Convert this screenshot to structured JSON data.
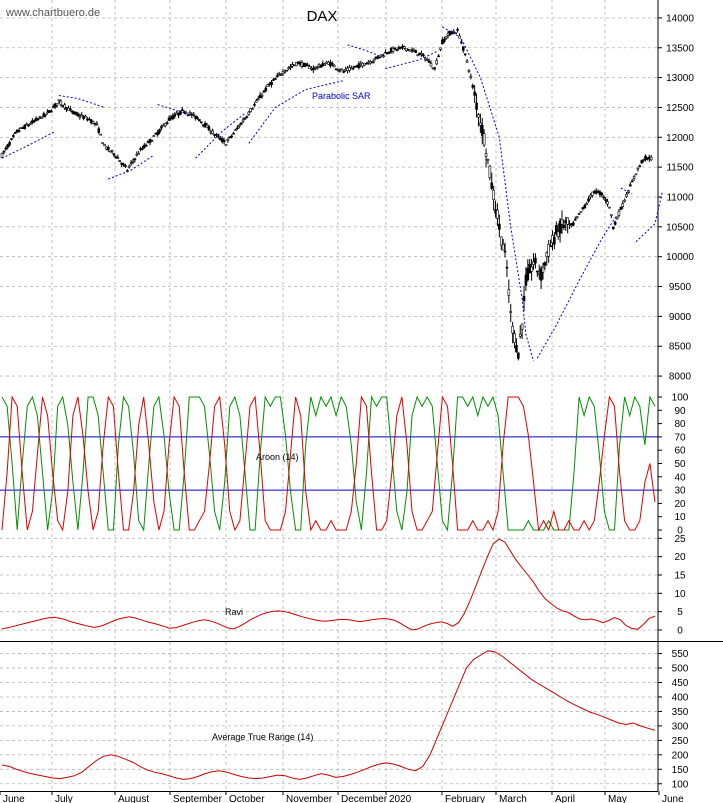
{
  "watermark": "www.chartbuero.de",
  "chart_data": [
    {
      "type": "candlestick",
      "title": "DAX",
      "x_labels": [
        "June",
        "July",
        "August",
        "September",
        "October",
        "November",
        "December",
        "2020",
        "February",
        "March",
        "April",
        "May",
        "June"
      ],
      "ylim": [
        7800,
        14300
      ],
      "y_ticks": [
        8000,
        8500,
        9000,
        9500,
        10000,
        10500,
        11000,
        11500,
        12000,
        12500,
        13000,
        13500,
        14000
      ],
      "grid": true,
      "indicator_label": "Parabolic SAR",
      "close_path": [
        [
          0,
          11700
        ],
        [
          4,
          12100
        ],
        [
          8,
          12250
        ],
        [
          12,
          12400
        ],
        [
          15,
          12600
        ],
        [
          19,
          12400
        ],
        [
          23,
          12300
        ],
        [
          25,
          12200
        ],
        [
          27,
          11850
        ],
        [
          30,
          11700
        ],
        [
          33,
          11450
        ],
        [
          36,
          11750
        ],
        [
          40,
          12000
        ],
        [
          44,
          12300
        ],
        [
          48,
          12450
        ],
        [
          52,
          12300
        ],
        [
          56,
          12050
        ],
        [
          59,
          11900
        ],
        [
          62,
          12150
        ],
        [
          66,
          12500
        ],
        [
          70,
          12850
        ],
        [
          74,
          13100
        ],
        [
          78,
          13250
        ],
        [
          82,
          13150
        ],
        [
          86,
          13250
        ],
        [
          90,
          13100
        ],
        [
          94,
          13200
        ],
        [
          98,
          13300
        ],
        [
          102,
          13450
        ],
        [
          106,
          13500
        ],
        [
          110,
          13400
        ],
        [
          112,
          13300
        ],
        [
          114,
          13150
        ],
        [
          116,
          13600
        ],
        [
          118,
          13750
        ],
        [
          120,
          13780
        ],
        [
          121,
          13600
        ],
        [
          123,
          13150
        ],
        [
          125,
          12550
        ],
        [
          127,
          12000
        ],
        [
          129,
          11200
        ],
        [
          131,
          10500
        ],
        [
          133,
          9800
        ],
        [
          134,
          9000
        ],
        [
          135,
          8650
        ],
        [
          136,
          8400
        ],
        [
          137,
          8900
        ],
        [
          138,
          9600
        ],
        [
          140,
          9900
        ],
        [
          142,
          9700
        ],
        [
          144,
          10100
        ],
        [
          146,
          10400
        ],
        [
          148,
          10550
        ],
        [
          150,
          10500
        ],
        [
          152,
          10700
        ],
        [
          154,
          10900
        ],
        [
          156,
          11100
        ],
        [
          158,
          11050
        ],
        [
          160,
          10850
        ],
        [
          161,
          10500
        ],
        [
          163,
          10800
        ],
        [
          165,
          11100
        ],
        [
          167,
          11400
        ],
        [
          169,
          11650
        ],
        [
          171,
          11650
        ]
      ],
      "sar_segments": [
        [
          [
            0,
            11650
          ],
          [
            8,
            11900
          ],
          [
            14,
            12100
          ]
        ],
        [
          [
            15,
            12700
          ],
          [
            20,
            12650
          ],
          [
            27,
            12500
          ]
        ],
        [
          [
            28,
            11300
          ],
          [
            34,
            11450
          ],
          [
            40,
            11700
          ]
        ],
        [
          [
            41,
            12550
          ],
          [
            46,
            12450
          ],
          [
            50,
            12350
          ]
        ],
        [
          [
            51,
            11650
          ],
          [
            58,
            12100
          ],
          [
            64,
            12400
          ]
        ],
        [
          [
            65,
            11900
          ],
          [
            72,
            12500
          ],
          [
            80,
            12800
          ],
          [
            90,
            12950
          ]
        ],
        [
          [
            91,
            13550
          ],
          [
            96,
            13450
          ],
          [
            100,
            13350
          ]
        ],
        [
          [
            101,
            13150
          ],
          [
            110,
            13300
          ],
          [
            115,
            13450
          ]
        ],
        [
          [
            116,
            13850
          ],
          [
            120,
            13700
          ]
        ],
        [
          [
            121,
            13650
          ],
          [
            126,
            13000
          ],
          [
            131,
            12000
          ],
          [
            134,
            10500
          ],
          [
            137,
            9300
          ],
          [
            138,
            8700
          ],
          [
            140,
            8250
          ]
        ],
        [
          [
            141,
            8300
          ],
          [
            146,
            8850
          ],
          [
            152,
            9600
          ],
          [
            158,
            10300
          ],
          [
            162,
            10700
          ]
        ],
        [
          [
            163,
            11150
          ],
          [
            166,
            11050
          ]
        ],
        [
          [
            167,
            10250
          ],
          [
            172,
            10550
          ],
          [
            174,
            11100
          ]
        ]
      ]
    },
    {
      "type": "line",
      "title": "Aroon (14)",
      "ylim": [
        0,
        100
      ],
      "y_ticks": [
        0,
        10,
        20,
        30,
        40,
        50,
        60,
        70,
        80,
        90,
        100
      ],
      "reference_lines": [
        30,
        70
      ],
      "series": [
        {
          "color": "#009000",
          "values": [
            100,
            93,
            50,
            0,
            50,
            93,
            100,
            86,
            43,
            0,
            29,
            93,
            100,
            79,
            36,
            0,
            43,
            100,
            100,
            86,
            43,
            0,
            0,
            64,
            100,
            93,
            57,
            7,
            0,
            50,
            93,
            100,
            71,
            29,
            0,
            0,
            43,
            100,
            100,
            100,
            93,
            57,
            14,
            0,
            36,
            93,
            100,
            86,
            43,
            0,
            0,
            57,
            100,
            93,
            100,
            100,
            71,
            29,
            0,
            0,
            64,
            100,
            86,
            100,
            93,
            100,
            86,
            100,
            93,
            64,
            21,
            0,
            43,
            100,
            93,
            100,
            100,
            57,
            14,
            0,
            29,
            86,
            100,
            93,
            100,
            93,
            50,
            7,
            0,
            43,
            100,
            100,
            93,
            100,
            86,
            100,
            93,
            100,
            86,
            43,
            0,
            0,
            0,
            0,
            7,
            0,
            0,
            0,
            7,
            0,
            0,
            0,
            0,
            43,
            100,
            86,
            100,
            93,
            57,
            14,
            0,
            0,
            64,
            100,
            86,
            100,
            93,
            64,
            100,
            93
          ]
        },
        {
          "color": "#e00000",
          "values": [
            0,
            43,
            100,
            93,
            43,
            0,
            14,
            57,
            100,
            86,
            43,
            7,
            0,
            29,
            86,
            100,
            71,
            29,
            0,
            14,
            64,
            100,
            93,
            43,
            0,
            0,
            29,
            79,
            100,
            64,
            21,
            0,
            14,
            64,
            100,
            93,
            43,
            0,
            0,
            7,
            14,
            50,
            93,
            100,
            64,
            14,
            0,
            7,
            50,
            93,
            100,
            57,
            7,
            0,
            0,
            0,
            14,
            57,
            100,
            86,
            29,
            0,
            7,
            0,
            0,
            7,
            0,
            0,
            0,
            14,
            50,
            100,
            93,
            43,
            0,
            0,
            7,
            43,
            86,
            100,
            64,
            14,
            0,
            0,
            7,
            14,
            57,
            100,
            93,
            50,
            0,
            0,
            0,
            7,
            0,
            0,
            7,
            0,
            14,
            64,
            100,
            100,
            100,
            93,
            71,
            36,
            0,
            7,
            0,
            14,
            0,
            0,
            7,
            0,
            0,
            7,
            0,
            7,
            36,
            71,
            100,
            93,
            43,
            7,
            0,
            0,
            7,
            36,
            50,
            21
          ]
        }
      ]
    },
    {
      "type": "line",
      "title": "Ravi",
      "ylim": [
        -3,
        27
      ],
      "y_ticks": [
        0,
        5,
        10,
        15,
        20,
        25
      ],
      "series": [
        {
          "color": "#cc0000",
          "values": [
            0.3,
            0.6,
            1.0,
            1.4,
            1.8,
            2.2,
            2.6,
            3.0,
            3.3,
            3.5,
            3.2,
            2.8,
            2.2,
            1.8,
            1.4,
            1.0,
            0.7,
            1.0,
            1.6,
            2.3,
            2.9,
            3.3,
            3.6,
            3.3,
            2.8,
            2.3,
            1.9,
            1.5,
            1.0,
            0.5,
            0.6,
            1.1,
            1.6,
            2.1,
            2.5,
            2.8,
            2.5,
            2.0,
            1.3,
            0.6,
            0.3,
            0.9,
            1.8,
            2.8,
            3.6,
            4.3,
            4.8,
            5.1,
            5.2,
            5.0,
            4.6,
            4.1,
            3.6,
            3.2,
            2.8,
            2.5,
            2.4,
            2.6,
            2.8,
            2.9,
            2.8,
            2.5,
            2.3,
            2.5,
            2.8,
            3.0,
            3.1,
            3.0,
            2.6,
            1.8,
            0.8,
            0.0,
            0.3,
            1.0,
            1.6,
            2.0,
            2.2,
            1.8,
            1.0,
            2.0,
            4.5,
            8.0,
            12.0,
            16.0,
            20.0,
            23.5,
            24.8,
            24.0,
            21.5,
            19.0,
            17.0,
            15.0,
            13.0,
            10.5,
            8.5,
            7.2,
            6.0,
            5.2,
            4.8,
            3.8,
            3.0,
            2.8,
            3.0,
            2.6,
            2.0,
            2.6,
            3.4,
            2.8,
            1.2,
            0.4,
            0.2,
            1.5,
            3.2,
            3.8
          ]
        }
      ]
    },
    {
      "type": "line",
      "title": "Average True Range (14)",
      "ylim": [
        75,
        590
      ],
      "y_ticks": [
        100,
        150,
        200,
        250,
        300,
        350,
        400,
        450,
        500,
        550
      ],
      "series": [
        {
          "color": "#cc0000",
          "values": [
            165,
            160,
            150,
            142,
            135,
            130,
            125,
            120,
            118,
            122,
            128,
            140,
            160,
            180,
            195,
            200,
            195,
            185,
            175,
            160,
            148,
            140,
            135,
            128,
            120,
            115,
            118,
            125,
            135,
            142,
            145,
            140,
            132,
            125,
            120,
            118,
            120,
            125,
            130,
            128,
            120,
            115,
            120,
            128,
            135,
            130,
            122,
            125,
            132,
            140,
            150,
            160,
            168,
            172,
            168,
            160,
            150,
            145,
            160,
            200,
            260,
            320,
            380,
            440,
            500,
            530,
            545,
            560,
            555,
            540,
            520,
            500,
            480,
            460,
            445,
            430,
            415,
            400,
            385,
            372,
            360,
            348,
            340,
            330,
            320,
            310,
            305,
            310,
            300,
            292,
            285
          ]
        }
      ]
    }
  ]
}
